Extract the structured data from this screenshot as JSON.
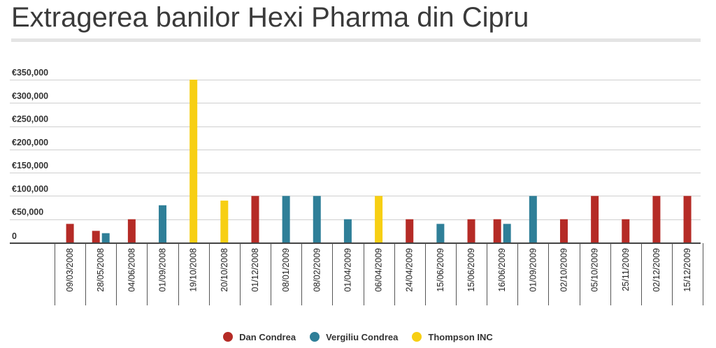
{
  "title": "Extragerea banilor Hexi Pharma din Cipru",
  "colors": {
    "Dan Condrea": "#b52b26",
    "Vergiliu Condrea": "#2f7f98",
    "Thompson INC": "#f7cf13"
  },
  "chart_data": {
    "type": "bar",
    "title": "Extragerea banilor Hexi Pharma din Cipru",
    "xlabel": "",
    "ylabel": "",
    "ylim": [
      0,
      350000
    ],
    "yticks": [
      {
        "value": 0,
        "label": "0"
      },
      {
        "value": 50000,
        "label": "€50,000"
      },
      {
        "value": 100000,
        "label": "€100,000"
      },
      {
        "value": 150000,
        "label": "€150,000"
      },
      {
        "value": 200000,
        "label": "€200,000"
      },
      {
        "value": 250000,
        "label": "€250,000"
      },
      {
        "value": 300000,
        "label": "€300,000"
      },
      {
        "value": 350000,
        "label": "€350,000"
      }
    ],
    "grid": true,
    "legend": "bottom-center",
    "categories": [
      "09/03/2008",
      "28/05/2008",
      "04/06/2008",
      "01/09/2008",
      "19/10/2008",
      "20/10/2008",
      "01/12/2008",
      "08/01/2009",
      "08/02/2009",
      "01/04/2009",
      "06/04/2009",
      "24/04/2009",
      "15/06/2009",
      "15/06/2009",
      "16/06/2009",
      "01/09/2009",
      "02/10/2009",
      "05/10/2009",
      "25/11/2009",
      "02/12/2009",
      "15/12/2009"
    ],
    "series": [
      {
        "name": "Dan Condrea",
        "values": [
          40000,
          25000,
          50000,
          0,
          0,
          0,
          100000,
          0,
          0,
          0,
          0,
          50000,
          0,
          50000,
          50000,
          0,
          50000,
          100000,
          50000,
          100000,
          100000
        ]
      },
      {
        "name": "Vergiliu Condrea",
        "values": [
          0,
          20000,
          0,
          80000,
          0,
          0,
          0,
          100000,
          100000,
          50000,
          0,
          0,
          40000,
          0,
          40000,
          100000,
          0,
          0,
          0,
          0,
          0
        ]
      },
      {
        "name": "Thompson INC",
        "values": [
          0,
          0,
          0,
          0,
          350000,
          90000,
          0,
          0,
          0,
          0,
          100000,
          0,
          0,
          0,
          0,
          0,
          0,
          0,
          0,
          0,
          0
        ]
      }
    ]
  }
}
